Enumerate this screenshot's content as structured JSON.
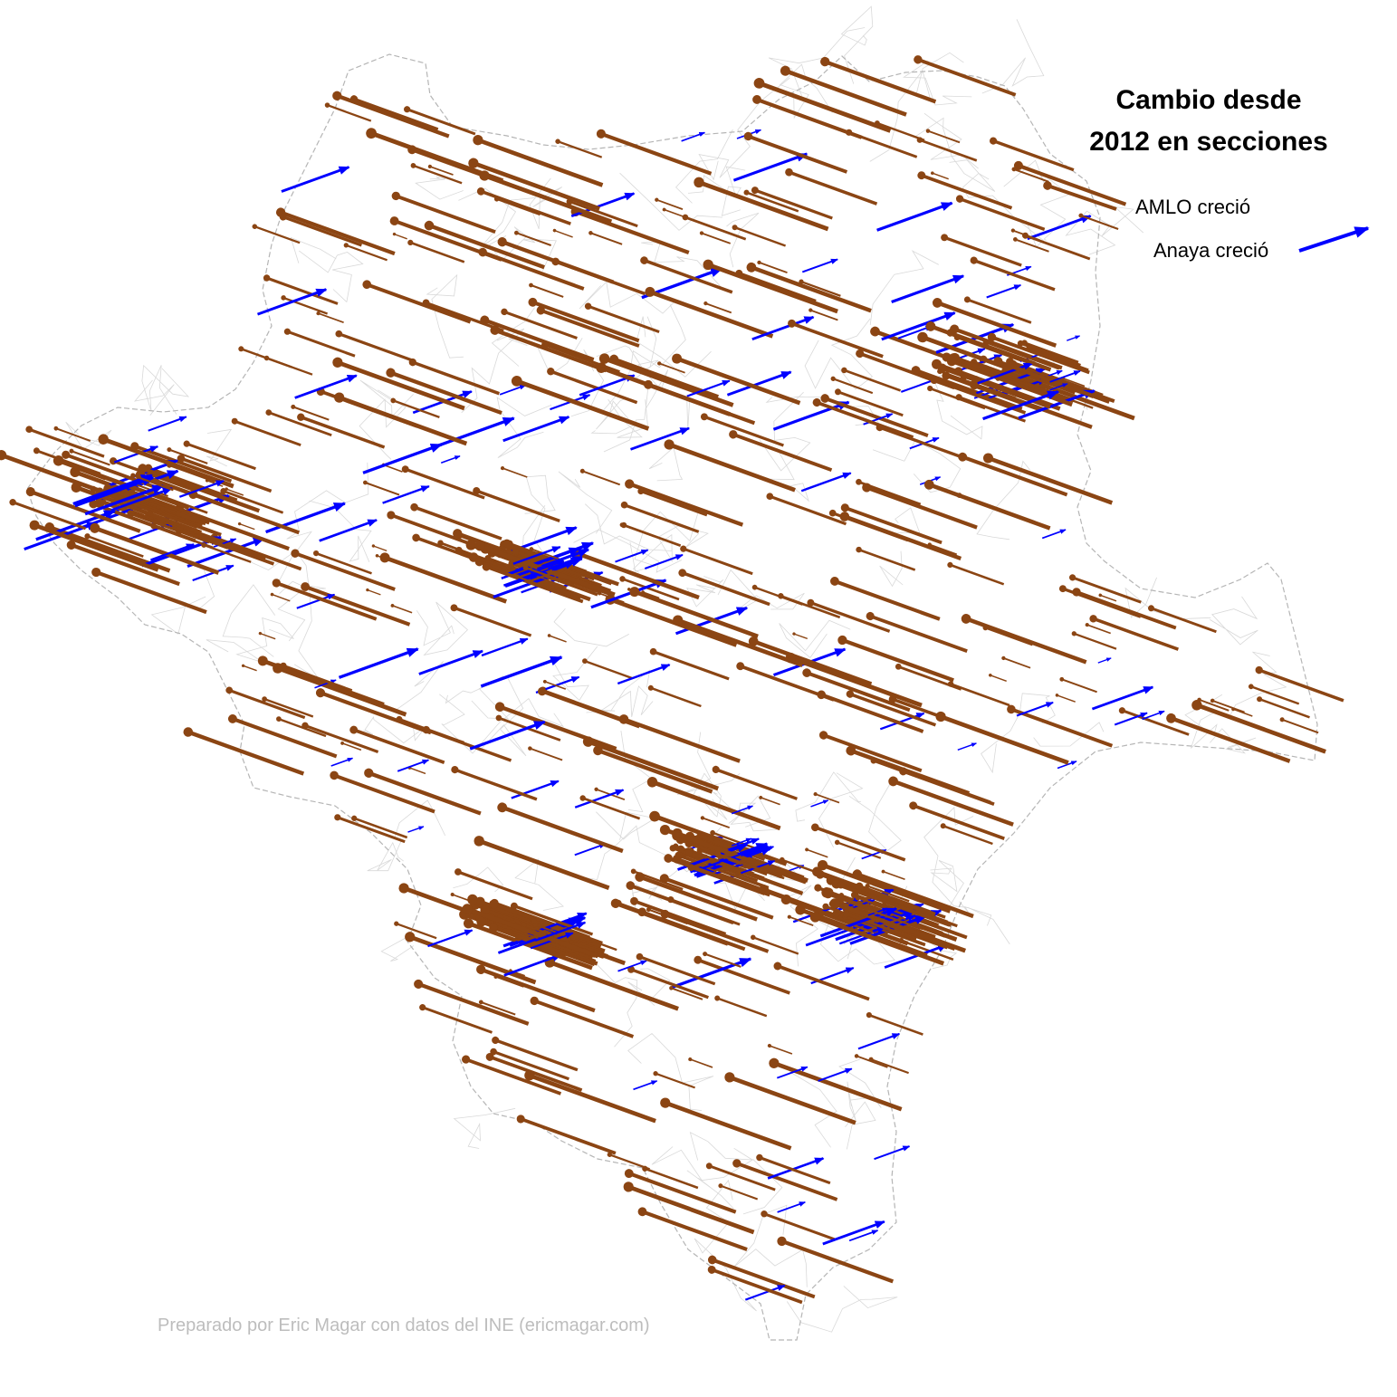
{
  "title": {
    "line1": "Cambio desde",
    "line2": "2012 en secciones"
  },
  "legend": {
    "items": [
      {
        "label": "AMLO creció",
        "color": "#8B4513",
        "icon": "brown-arrow-icon"
      },
      {
        "label": "Anaya creció",
        "color": "#0000FF",
        "icon": "blue-arrow-icon"
      }
    ]
  },
  "credit": "Preparado por Eric Magar con datos del INE (ericmagar.com)",
  "colors": {
    "amlo": "#8B4513",
    "anaya": "#0000FF",
    "outline": "#b5b5b5",
    "sections": "#d9d9d9",
    "background": "#ffffff"
  }
}
